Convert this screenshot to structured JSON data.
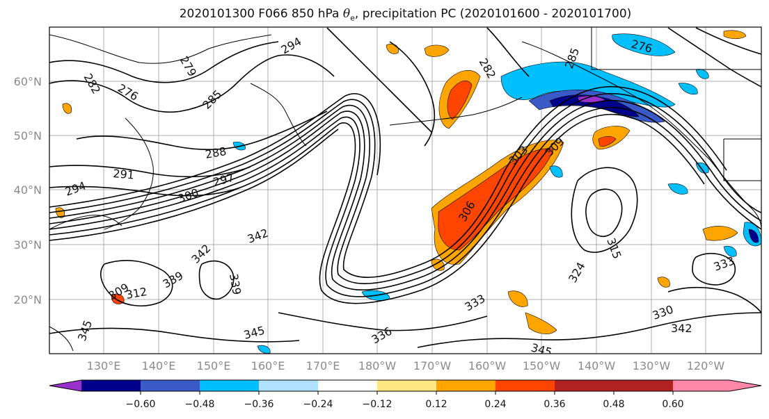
{
  "title": {
    "prefix": "2020101300 F066 850 hPa ",
    "symbol": "θ",
    "symbol_sub": "e",
    "suffix": ", precipitation PC (2020101600 - 2020101700)"
  },
  "lat_labels": [
    "60°N",
    "50°N",
    "40°N",
    "30°N",
    "20°N"
  ],
  "lon_labels": [
    "130°E",
    "140°E",
    "150°E",
    "160°E",
    "170°E",
    "180°W",
    "170°W",
    "160°W",
    "150°W",
    "140°W",
    "130°W",
    "120°W"
  ],
  "contour_labels": [
    "294",
    "276",
    "279",
    "282",
    "276",
    "285",
    "282",
    "285",
    "288",
    "291",
    "294",
    "297",
    "300",
    "306",
    "303",
    "309",
    "342",
    "339",
    "342",
    "345",
    "345",
    "339",
    "336",
    "333",
    "330",
    "324",
    "315",
    "333",
    "342",
    "345",
    "309",
    "312"
  ],
  "colorbar": {
    "ticks": [
      "−0.60",
      "−0.48",
      "−0.36",
      "−0.24",
      "−0.12",
      "0.12",
      "0.24",
      "0.36",
      "0.48",
      "0.60"
    ],
    "colors": [
      "#9932cc",
      "#00008b",
      "#3a5bc7",
      "#00bfff",
      "#b0e2ff",
      "#ffffff",
      "#ffe680",
      "#ffa500",
      "#ff4500",
      "#b22222",
      "#ff88aa"
    ]
  }
}
